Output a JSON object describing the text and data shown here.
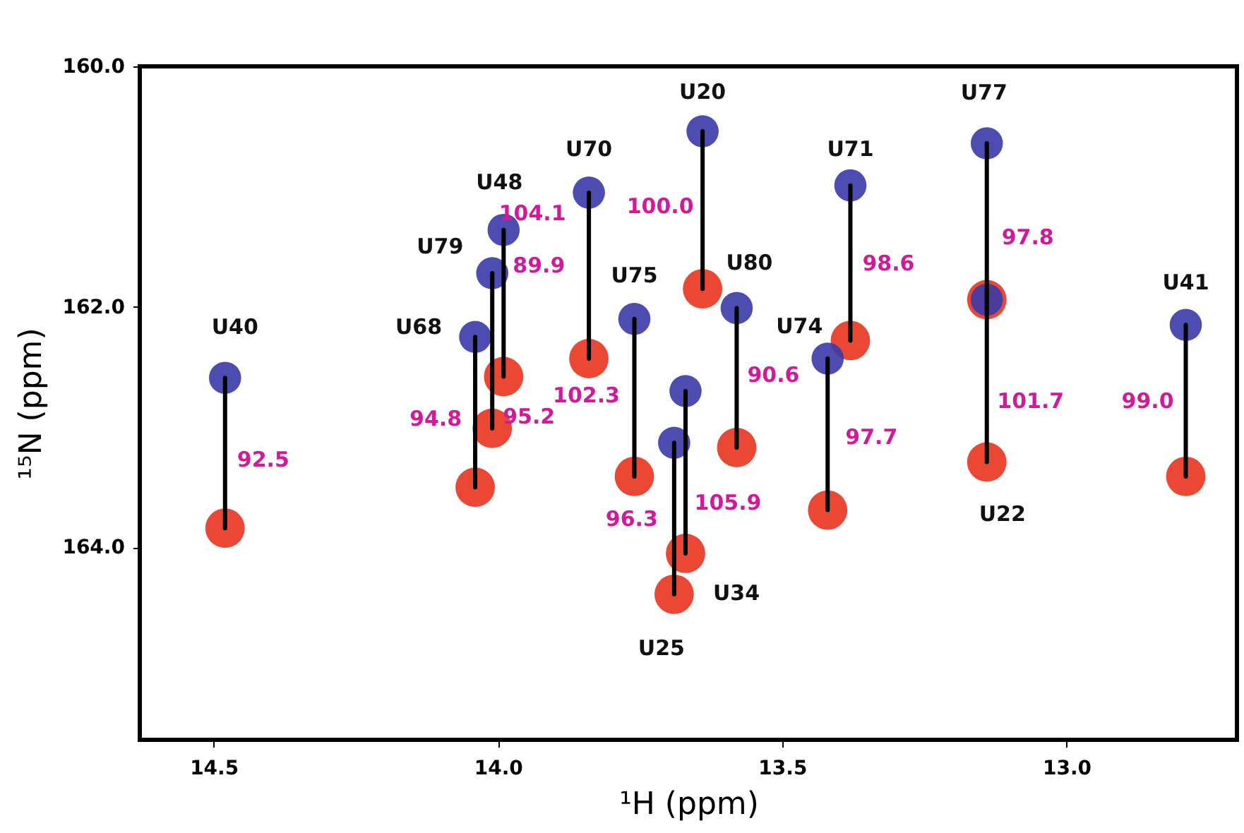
{
  "chart_data": {
    "type": "scatter",
    "xlabel": "¹H (ppm)",
    "ylabel": "¹⁵N (ppm)",
    "xlim": [
      14.63,
      12.7
    ],
    "ylim": [
      165.6,
      160.0
    ],
    "xticks": [
      14.5,
      {
        "value": 14.0,
        "label": "14.0"
      },
      13.5,
      {
        "value": 13.0,
        "label": "13.0"
      }
    ],
    "yticks": [
      {
        "value": 160.0,
        "label": "160.0"
      },
      {
        "value": 162.0,
        "label": "162.0"
      },
      {
        "value": 164.0,
        "label": "164.0"
      }
    ],
    "grid": false,
    "x": [
      14.48,
      14.04,
      14.01,
      13.99,
      13.84,
      13.76,
      13.69,
      13.67,
      13.64,
      13.58,
      13.42,
      13.38,
      13.14,
      13.14,
      12.79
    ],
    "series": [
      {
        "color": "#3a3aa8",
        "marker": "circle",
        "values": [
          162.59,
          162.25,
          161.72,
          161.36,
          161.05,
          162.1,
          163.13,
          162.7,
          160.54,
          162.01,
          162.43,
          160.99,
          160.64,
          161.94,
          162.15
        ]
      },
      {
        "color": "#e8341f",
        "marker": "circle",
        "values": [
          163.84,
          163.5,
          163.01,
          162.58,
          162.43,
          163.41,
          164.39,
          164.05,
          161.85,
          163.17,
          163.69,
          162.28,
          161.94,
          163.29,
          163.41
        ]
      },
      {
        "type": "line",
        "color": "#000000",
        "x": [
          14.48,
          14.48
        ],
        "values": [
          162.59,
          163.84
        ]
      },
      {
        "type": "line",
        "color": "#000000",
        "x": [
          14.04,
          14.04
        ],
        "values": [
          162.25,
          163.5
        ]
      },
      {
        "type": "line",
        "color": "#000000",
        "x": [
          14.01,
          14.01
        ],
        "values": [
          161.72,
          163.01
        ]
      },
      {
        "type": "line",
        "color": "#000000",
        "x": [
          13.99,
          13.99
        ],
        "values": [
          161.36,
          162.58
        ]
      },
      {
        "type": "line",
        "color": "#000000",
        "x": [
          13.84,
          13.84
        ],
        "values": [
          161.05,
          162.43
        ]
      },
      {
        "type": "line",
        "color": "#000000",
        "x": [
          13.76,
          13.76
        ],
        "values": [
          162.1,
          163.41
        ]
      },
      {
        "type": "line",
        "color": "#000000",
        "x": [
          13.69,
          13.69
        ],
        "values": [
          163.13,
          164.39
        ]
      },
      {
        "type": "line",
        "color": "#000000",
        "x": [
          13.67,
          13.67
        ],
        "values": [
          162.7,
          164.05
        ]
      },
      {
        "type": "line",
        "color": "#000000",
        "x": [
          13.64,
          13.64
        ],
        "values": [
          160.54,
          161.85
        ]
      },
      {
        "type": "line",
        "color": "#000000",
        "x": [
          13.58,
          13.58
        ],
        "values": [
          162.01,
          163.17
        ]
      },
      {
        "type": "line",
        "color": "#000000",
        "x": [
          13.42,
          13.42
        ],
        "values": [
          162.43,
          163.69
        ]
      },
      {
        "type": "line",
        "color": "#000000",
        "x": [
          13.38,
          13.38
        ],
        "values": [
          160.99,
          162.28
        ]
      },
      {
        "type": "line",
        "color": "#000000",
        "x": [
          13.14,
          13.14
        ],
        "values": [
          160.64,
          161.94
        ]
      },
      {
        "type": "line",
        "color": "#000000",
        "x": [
          13.14,
          13.14
        ],
        "values": [
          161.94,
          163.29
        ]
      },
      {
        "type": "line",
        "color": "#000000",
        "x": [
          12.79,
          12.79
        ],
        "values": [
          162.15,
          163.41
        ]
      }
    ],
    "annotations": [
      {
        "text": "U40",
        "x": 14.48,
        "y": 162.59
      },
      {
        "text": "U68",
        "x": 14.04,
        "y": 162.25
      },
      {
        "text": "U79",
        "x": 14.01,
        "y": 161.72
      },
      {
        "text": "U48",
        "x": 13.99,
        "y": 161.36
      },
      {
        "text": "U70",
        "x": 13.84,
        "y": 161.05
      },
      {
        "text": "U75",
        "x": 13.76,
        "y": 162.1
      },
      {
        "text": "U20",
        "x": 13.64,
        "y": 160.54
      },
      {
        "text": "U80",
        "x": 13.58,
        "y": 162.01
      },
      {
        "text": "U74",
        "x": 13.42,
        "y": 162.43
      },
      {
        "text": "U71",
        "x": 13.38,
        "y": 160.99
      },
      {
        "text": "U77",
        "x": 13.14,
        "y": 160.64
      },
      {
        "text": "U41",
        "x": 12.79,
        "y": 162.15
      },
      {
        "text": "U22",
        "x": 13.14,
        "y": 163.29
      },
      {
        "text": "U34",
        "x": 13.67,
        "y": 164.05
      },
      {
        "text": "U25",
        "x": 13.69,
        "y": 164.39
      },
      {
        "text": "92.5",
        "x": 14.48,
        "y": 163.22
      },
      {
        "text": "94.8",
        "x": 14.04,
        "y": 162.88
      },
      {
        "text": "95.2",
        "x": 14.01,
        "y": 162.37
      },
      {
        "text": "89.9",
        "x": 13.99,
        "y": 161.97
      },
      {
        "text": "104.1",
        "x": 13.84,
        "y": 161.74
      },
      {
        "text": "102.3",
        "x": 13.76,
        "y": 162.76
      },
      {
        "text": "96.3",
        "x": 13.69,
        "y": 163.76
      },
      {
        "text": "105.9",
        "x": 13.67,
        "y": 163.38
      },
      {
        "text": "100.0",
        "x": 13.64,
        "y": 161.2
      },
      {
        "text": "90.6",
        "x": 13.58,
        "y": 162.59
      },
      {
        "text": "97.7",
        "x": 13.42,
        "y": 163.06
      },
      {
        "text": "98.6",
        "x": 13.38,
        "y": 161.64
      },
      {
        "text": "97.8",
        "x": 13.14,
        "y": 161.29
      },
      {
        "text": "101.7",
        "x": 13.14,
        "y": 162.62
      },
      {
        "text": "99.0",
        "x": 12.79,
        "y": 162.78
      }
    ]
  }
}
